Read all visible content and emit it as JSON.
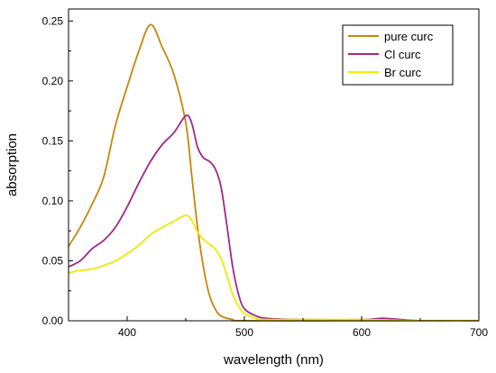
{
  "chart_data": {
    "type": "line",
    "xlabel": "wavelength (nm)",
    "ylabel": "absorption",
    "xlim": [
      350,
      700
    ],
    "ylim": [
      0,
      0.26
    ],
    "grid": false,
    "legend_position": "top-right",
    "x_ticks": [
      400,
      500,
      600,
      700
    ],
    "x_tick_labels": [
      "400",
      "500",
      "600",
      "700"
    ],
    "y_ticks": [
      0.0,
      0.05,
      0.1,
      0.15,
      0.2,
      0.25
    ],
    "y_tick_labels": [
      "0.00",
      "0.05",
      "0.10",
      "0.15",
      "0.20",
      "0.25"
    ],
    "series": [
      {
        "name": "pure curc",
        "color": "#c8860a",
        "points": [
          [
            350,
            0.062
          ],
          [
            360,
            0.078
          ],
          [
            370,
            0.097
          ],
          [
            380,
            0.12
          ],
          [
            390,
            0.163
          ],
          [
            400,
            0.195
          ],
          [
            410,
            0.225
          ],
          [
            420,
            0.247
          ],
          [
            430,
            0.228
          ],
          [
            440,
            0.205
          ],
          [
            450,
            0.165
          ],
          [
            455,
            0.122
          ],
          [
            460,
            0.078
          ],
          [
            465,
            0.045
          ],
          [
            470,
            0.022
          ],
          [
            475,
            0.01
          ],
          [
            480,
            0.004
          ],
          [
            490,
            0.001
          ],
          [
            500,
            0.0
          ],
          [
            600,
            0.0
          ],
          [
            700,
            0.0
          ]
        ]
      },
      {
        "name": "Cl curc",
        "color": "#a0288c",
        "points": [
          [
            350,
            0.045
          ],
          [
            360,
            0.05
          ],
          [
            370,
            0.06
          ],
          [
            380,
            0.067
          ],
          [
            390,
            0.078
          ],
          [
            400,
            0.095
          ],
          [
            410,
            0.115
          ],
          [
            420,
            0.133
          ],
          [
            430,
            0.147
          ],
          [
            440,
            0.157
          ],
          [
            450,
            0.171
          ],
          [
            455,
            0.165
          ],
          [
            460,
            0.145
          ],
          [
            465,
            0.136
          ],
          [
            470,
            0.133
          ],
          [
            475,
            0.127
          ],
          [
            480,
            0.112
          ],
          [
            485,
            0.08
          ],
          [
            490,
            0.045
          ],
          [
            495,
            0.022
          ],
          [
            500,
            0.01
          ],
          [
            510,
            0.004
          ],
          [
            520,
            0.002
          ],
          [
            550,
            0.001
          ],
          [
            600,
            0.001
          ],
          [
            620,
            0.002
          ],
          [
            650,
            0.0
          ],
          [
            700,
            0.0
          ]
        ]
      },
      {
        "name": "Br curc",
        "color": "#ecec00",
        "points": [
          [
            350,
            0.04
          ],
          [
            360,
            0.042
          ],
          [
            370,
            0.043
          ],
          [
            380,
            0.046
          ],
          [
            390,
            0.05
          ],
          [
            400,
            0.056
          ],
          [
            410,
            0.063
          ],
          [
            420,
            0.072
          ],
          [
            430,
            0.078
          ],
          [
            440,
            0.083
          ],
          [
            450,
            0.088
          ],
          [
            455,
            0.084
          ],
          [
            460,
            0.074
          ],
          [
            465,
            0.068
          ],
          [
            470,
            0.064
          ],
          [
            475,
            0.06
          ],
          [
            480,
            0.052
          ],
          [
            485,
            0.038
          ],
          [
            490,
            0.022
          ],
          [
            495,
            0.012
          ],
          [
            500,
            0.006
          ],
          [
            510,
            0.002
          ],
          [
            520,
            0.001
          ],
          [
            600,
            0.001
          ],
          [
            650,
            0.0
          ],
          [
            700,
            0.0
          ]
        ]
      }
    ]
  }
}
